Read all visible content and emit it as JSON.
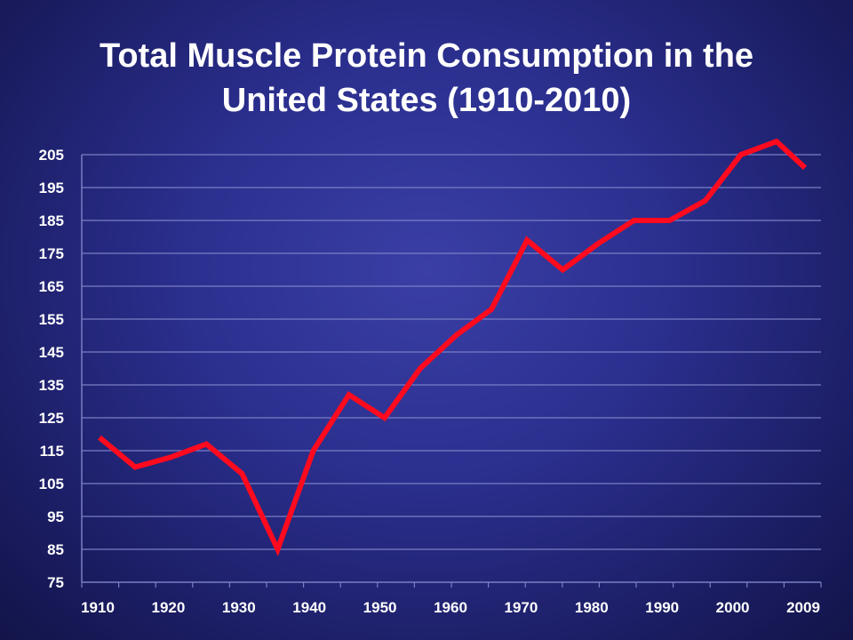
{
  "title": {
    "line1": "Total Muscle Protein Consumption in the",
    "line2": "United States (1910-2010)"
  },
  "colors": {
    "line": "#ff0a1e",
    "grid": "#7a7fc4",
    "text": "#ffffff"
  },
  "chart_data": {
    "type": "line",
    "title": "Total Muscle Protein Consumption in the United States (1910-2010)",
    "xlabel": "",
    "ylabel": "",
    "x_tick_labels": [
      "1910",
      "1920",
      "1930",
      "1940",
      "1950",
      "1960",
      "1970",
      "1980",
      "1990",
      "2000",
      "2009"
    ],
    "y_ticks": [
      75,
      85,
      95,
      105,
      115,
      125,
      135,
      145,
      155,
      165,
      175,
      185,
      195,
      205
    ],
    "ylim": [
      75,
      205
    ],
    "xlim": [
      1910,
      2009
    ],
    "grid": true,
    "legend": "none",
    "series": [
      {
        "x": [
          1910,
          1915,
          1920,
          1925,
          1930,
          1935,
          1940,
          1945,
          1950,
          1955,
          1960,
          1965,
          1970,
          1975,
          1980,
          1985,
          1990,
          1995,
          2000,
          2005,
          2009
        ],
        "values": [
          119,
          110,
          113,
          117,
          108,
          85,
          115,
          132,
          125,
          140,
          150,
          158,
          179,
          170,
          178,
          185,
          185,
          191,
          205,
          209,
          201
        ]
      }
    ]
  }
}
